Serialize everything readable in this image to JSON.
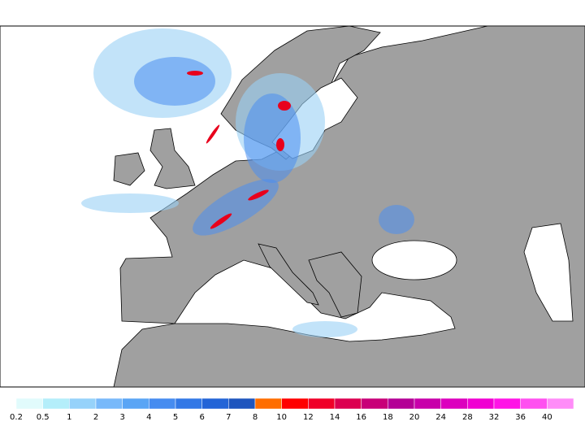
{
  "legend": {
    "levels": [
      0.2,
      0.5,
      1,
      2,
      3,
      4,
      5,
      6,
      7,
      8,
      10,
      12,
      14,
      16,
      18,
      20,
      24,
      28,
      32,
      36,
      40
    ],
    "colors": [
      "#e1fbfc",
      "#b4eefa",
      "#96d2fa",
      "#78b9fa",
      "#5aa5f5",
      "#468cf0",
      "#3278e6",
      "#2364d7",
      "#1e55be",
      "#ff6e00",
      "#ff0000",
      "#f00028",
      "#dc0050",
      "#c80078",
      "#b40096",
      "#c800aa",
      "#dc00be",
      "#f000d2",
      "#ff14e6",
      "#ff50f0",
      "#ff8cf8"
    ]
  }
}
